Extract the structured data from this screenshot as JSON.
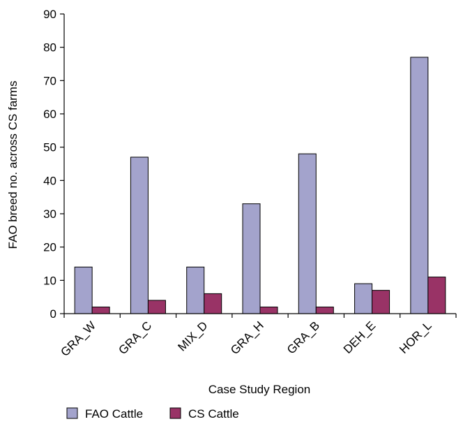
{
  "chart_data": {
    "type": "bar",
    "title": "",
    "xlabel": "Case Study Region",
    "ylabel": "FAO breed no. across CS farms",
    "ylim": [
      0,
      90
    ],
    "yticks": [
      0,
      10,
      20,
      30,
      40,
      50,
      60,
      70,
      80,
      90
    ],
    "categories": [
      "GRA_W",
      "GRA_C",
      "MIX_D",
      "GRA_H",
      "GRA_B",
      "DEH_E",
      "HOR_L"
    ],
    "series": [
      {
        "name": "FAO Cattle",
        "color": "#a3a3cc",
        "values": [
          14,
          47,
          14,
          33,
          48,
          9,
          77
        ]
      },
      {
        "name": "CS Cattle",
        "color": "#993366",
        "values": [
          2,
          4,
          6,
          2,
          2,
          7,
          11
        ]
      }
    ],
    "grid": false,
    "legend_position": "bottom"
  }
}
